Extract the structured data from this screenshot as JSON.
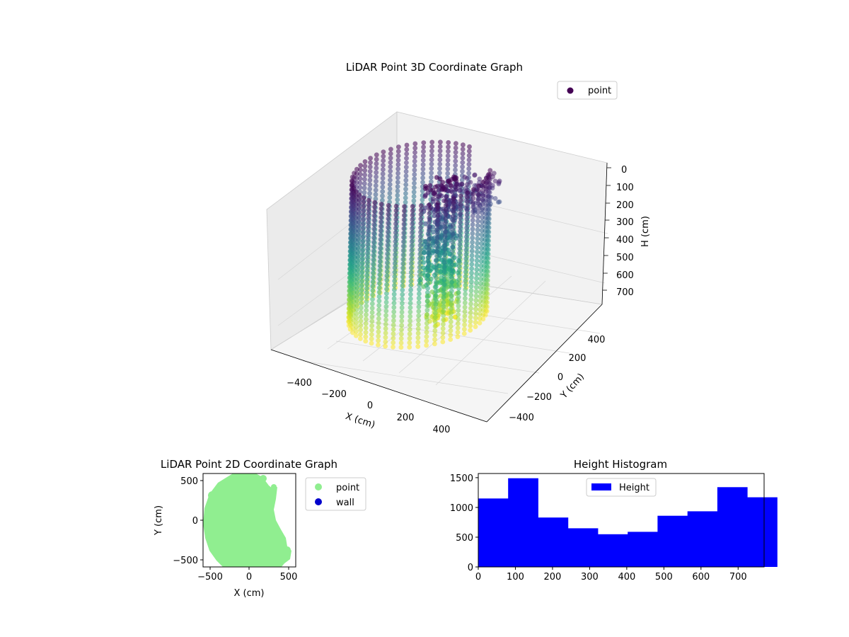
{
  "chart_data": [
    {
      "type": "scatter",
      "title": "LiDAR Point 3D Coordinate Graph",
      "xlabel": "X (cm)",
      "ylabel": "Y (cm)",
      "zlabel": "H (cm)",
      "xlim": [
        -500,
        500
      ],
      "ylim": [
        -500,
        500
      ],
      "zlim": [
        0,
        770
      ],
      "z_inverted": true,
      "x_ticks": [
        "−400",
        "−200",
        "0",
        "200",
        "400"
      ],
      "y_ticks": [
        "−400",
        "−200",
        "0",
        "200",
        "400"
      ],
      "z_ticks": [
        "0",
        "100",
        "200",
        "300",
        "400",
        "500",
        "600",
        "700"
      ],
      "legend": {
        "position": "top-right",
        "entries": [
          "point"
        ]
      },
      "series": [
        {
          "name": "point",
          "colormap": "viridis",
          "wall_radius": 470,
          "wall_angle_range_deg": [
            -270,
            40
          ],
          "height_range": [
            0,
            770
          ],
          "legend_color": "#440154"
        }
      ],
      "grid": true
    },
    {
      "type": "scatter",
      "title": "LiDAR Point 2D Coordinate Graph",
      "xlabel": "X (cm)",
      "ylabel": "Y (cm)",
      "xlim": [
        -560,
        560
      ],
      "ylim": [
        -560,
        560
      ],
      "x_ticks": [
        "−500",
        "0",
        "500"
      ],
      "y_ticks": [
        "−500",
        "0",
        "500"
      ],
      "legend": {
        "position": "outside-right",
        "entries": [
          "point",
          "wall"
        ]
      },
      "series": [
        {
          "name": "point",
          "color": "#90ee90"
        },
        {
          "name": "wall",
          "color": "#0000cc"
        }
      ]
    },
    {
      "type": "bar",
      "title": "Height Histogram",
      "xlabel": "",
      "ylabel": "",
      "xlim": [
        0,
        770
      ],
      "ylim": [
        0,
        1570
      ],
      "x_ticks": [
        "0",
        "100",
        "200",
        "300",
        "400",
        "500",
        "600",
        "700"
      ],
      "y_ticks": [
        "0",
        "500",
        "1000",
        "1500"
      ],
      "bin_width": 80.5,
      "values": [
        1150,
        1490,
        830,
        650,
        550,
        590,
        860,
        935,
        1340,
        1170
      ],
      "color": "#0000ff",
      "legend": {
        "position": "top-center",
        "entries": [
          "Height"
        ]
      }
    }
  ]
}
